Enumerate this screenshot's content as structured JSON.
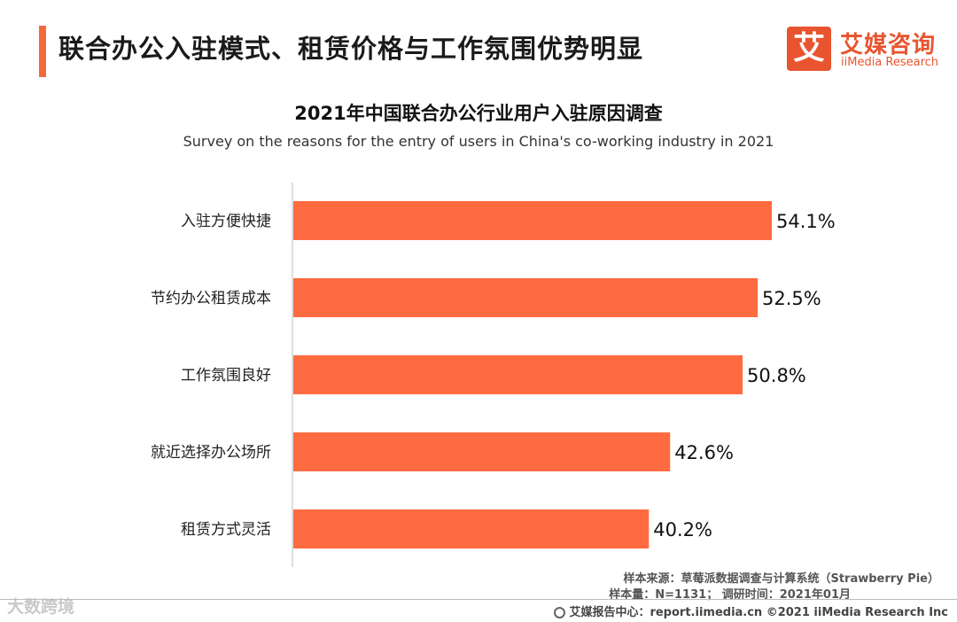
{
  "header": {
    "title": "联合办公入驻模式、租赁价格与工作氛围优势明显"
  },
  "logo": {
    "glyph": "艾",
    "cn": "艾媒咨询",
    "en": "iiMedia Research"
  },
  "chart_data": {
    "type": "bar",
    "orientation": "horizontal",
    "title": "2021年中国联合办公行业用户入驻原因调查",
    "subtitle": "Survey on the reasons for the entry of users in China's co-working industry in 2021",
    "categories": [
      "入驻方便快捷",
      "节约办公租赁成本",
      "工作氛围良好",
      "就近选择办公场所",
      "租赁方式灵活"
    ],
    "values": [
      54.1,
      52.5,
      50.8,
      42.6,
      40.2
    ],
    "labels": [
      "54.1%",
      "52.5%",
      "50.8%",
      "42.6%",
      "40.2%"
    ],
    "unit": "%",
    "xlim": [
      0,
      100
    ],
    "grid": false,
    "legend": "none",
    "bar_color": "#FF6B40"
  },
  "source": {
    "line1": "样本来源：草莓派数据调查与计算系统（Strawberry Pie）",
    "line2": "样本量：N=1131；  调研时间：2021年01月"
  },
  "footer": {
    "text": "艾媒报告中心：report.iimedia.cn   ©2021  iiMedia Research  Inc"
  },
  "watermark": {
    "text": "大数跨境"
  },
  "colors": {
    "accent": "#F26A3C",
    "brand": "#E8542F"
  }
}
